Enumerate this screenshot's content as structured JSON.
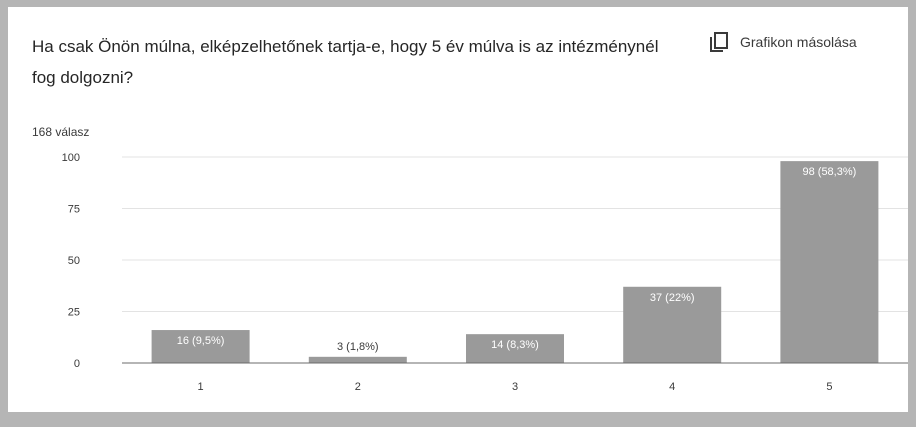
{
  "card": {
    "question": "Ha csak Önön múlna, elképzelhetőnek tartja-e, hogy 5 év múlva is az intézménynél fog dolgozni?",
    "copy_label": "Grafikon másolása",
    "copy_icon": "copy-icon",
    "response_count": "168 válasz"
  },
  "chart_data": {
    "type": "bar",
    "categories": [
      "1",
      "2",
      "3",
      "4",
      "5"
    ],
    "values": [
      16,
      3,
      14,
      37,
      98
    ],
    "data_labels": [
      "16 (9,5%)",
      "3 (1,8%)",
      "14 (8,3%)",
      "37 (22%)",
      "98 (58,3%)"
    ],
    "yticks": [
      0,
      25,
      50,
      75,
      100
    ],
    "ylim": [
      0,
      100
    ],
    "grid": true,
    "colors": {
      "bar": "#9a9a9a",
      "grid": "#e3e3e3",
      "axis": "#6b6b6b",
      "label_inside": "#ffffff",
      "label_outside": "#3a3a3a"
    }
  }
}
